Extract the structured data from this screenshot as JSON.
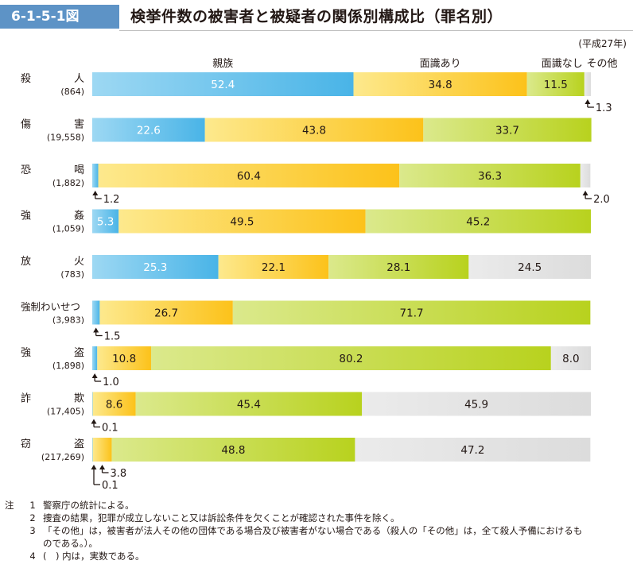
{
  "figure": {
    "number": "6-1-5-1図",
    "title": "検挙件数の被害者と被疑者の関係別構成比（罪名別）",
    "period": "(平成27年)"
  },
  "chart_data": {
    "type": "bar",
    "orientation": "horizontal",
    "stacked": true,
    "unit": "percent",
    "xlim": [
      0,
      100
    ],
    "series": [
      {
        "name": "親族",
        "color_start": "#9dd8f3",
        "color_end": "#49b4e7",
        "label_color": "#ffffff"
      },
      {
        "name": "面識あり",
        "color_start": "#fde98d",
        "color_end": "#fcc21a",
        "label_color": "#231815"
      },
      {
        "name": "面識なし",
        "color_start": "#dbe98c",
        "color_end": "#b8d21e",
        "label_color": "#231815"
      },
      {
        "name": "その他",
        "color_start": "#ebebeb",
        "color_end": "#dcdcdc",
        "label_color": "#231815"
      }
    ],
    "categories": [
      {
        "name": "殺人",
        "name_a": "殺",
        "name_b": "人",
        "count": "(864)",
        "values": [
          52.4,
          34.8,
          11.5,
          1.3
        ],
        "labels": [
          "52.4",
          "34.8",
          "11.5",
          ""
        ],
        "callouts": [
          {
            "segment": 3,
            "text": "1.3",
            "side": "right",
            "level": 1
          }
        ]
      },
      {
        "name": "傷害",
        "name_a": "傷",
        "name_b": "害",
        "count": "(19,558)",
        "values": [
          22.6,
          43.8,
          33.7,
          0
        ],
        "labels": [
          "22.6",
          "43.8",
          "33.7",
          ""
        ],
        "callouts": []
      },
      {
        "name": "恐喝",
        "name_a": "恐",
        "name_b": "喝",
        "count": "(1,882)",
        "values": [
          1.2,
          60.4,
          36.3,
          2.0
        ],
        "labels": [
          "",
          "60.4",
          "36.3",
          ""
        ],
        "callouts": [
          {
            "segment": 0,
            "text": "1.2",
            "side": "right",
            "level": 1
          },
          {
            "segment": 3,
            "text": "2.0",
            "side": "right",
            "level": 1
          }
        ]
      },
      {
        "name": "強姦",
        "name_a": "強",
        "name_b": "姦",
        "count": "(1,059)",
        "values": [
          5.3,
          49.5,
          45.2,
          0
        ],
        "labels": [
          "5.3",
          "49.5",
          "45.2",
          ""
        ],
        "callouts": []
      },
      {
        "name": "放火",
        "name_a": "放",
        "name_b": "火",
        "count": "(783)",
        "values": [
          25.3,
          22.1,
          28.1,
          24.5
        ],
        "labels": [
          "25.3",
          "22.1",
          "28.1",
          "24.5"
        ],
        "callouts": []
      },
      {
        "name": "強制わいせつ",
        "name_a": "強制わいせつ",
        "name_b": "",
        "count": "(3,983)",
        "values": [
          1.5,
          26.7,
          71.7,
          0
        ],
        "labels": [
          "",
          "26.7",
          "71.7",
          ""
        ],
        "callouts": [
          {
            "segment": 0,
            "text": "1.5",
            "side": "right",
            "level": 1
          }
        ]
      },
      {
        "name": "強盗",
        "name_a": "強",
        "name_b": "盗",
        "count": "(1,898)",
        "values": [
          1.0,
          10.8,
          80.2,
          8.0
        ],
        "labels": [
          "",
          "10.8",
          "80.2",
          "8.0"
        ],
        "callouts": [
          {
            "segment": 0,
            "text": "1.0",
            "side": "right",
            "level": 1
          }
        ]
      },
      {
        "name": "詐欺",
        "name_a": "詐",
        "name_b": "欺",
        "count": "(17,405)",
        "values": [
          0.1,
          8.6,
          45.4,
          45.9
        ],
        "labels": [
          "",
          "8.6",
          "45.4",
          "45.9"
        ],
        "callouts": [
          {
            "segment": 0,
            "text": "0.1",
            "side": "right",
            "level": 1
          }
        ]
      },
      {
        "name": "窃盗",
        "name_a": "窃",
        "name_b": "盗",
        "count": "(217,269)",
        "values": [
          0.1,
          3.8,
          48.8,
          47.2
        ],
        "labels": [
          "",
          "",
          "48.8",
          "47.2"
        ],
        "callouts": [
          {
            "segment": 1,
            "text": "3.8",
            "side": "right",
            "level": 1
          },
          {
            "segment": 0,
            "text": "0.1",
            "side": "right",
            "level": 2
          }
        ]
      }
    ]
  },
  "notes": {
    "head": "注",
    "items": [
      {
        "num": "1",
        "text": "警察庁の統計による。"
      },
      {
        "num": "2",
        "text": "捜査の結果，犯罪が成立しないこと又は訴訟条件を欠くことが確認された事件を除く。"
      },
      {
        "num": "3",
        "text": "「その他」は，被害者が法人その他の団体である場合及び被害者がない場合である（殺人の「その他」は，全て殺人予備におけるも",
        "cont": "のである。）。"
      },
      {
        "num": "4",
        "text": "(　) 内は，実数である。"
      }
    ]
  }
}
